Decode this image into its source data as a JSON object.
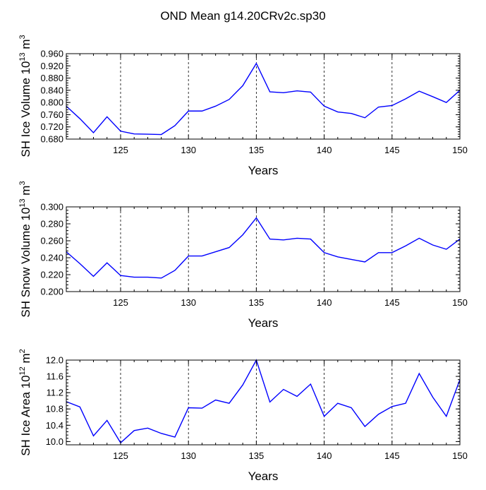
{
  "title": "OND Mean g14.20CRv2c.sp30",
  "line_color": "#0000ff",
  "chart_data": [
    {
      "type": "line",
      "ylabel_main": "SH Ice Volume 10",
      "ylabel_exp": "13",
      "ylabel_unit": " m",
      "ylabel_unit_exp": "3",
      "xlabel": "Years",
      "xlim": [
        121,
        150
      ],
      "ylim": [
        0.68,
        0.96
      ],
      "yticks": [
        0.68,
        0.72,
        0.76,
        0.8,
        0.84,
        0.88,
        0.92,
        0.96
      ],
      "ytick_labels": [
        "0.680",
        "0.720",
        "0.760",
        "0.800",
        "0.840",
        "0.880",
        "0.920",
        "0.960"
      ],
      "yminor_step": 0.008,
      "xticks": [
        125,
        130,
        135,
        140,
        145,
        150
      ],
      "xtick_labels": [
        "125",
        "130",
        "135",
        "140",
        "145",
        "150"
      ],
      "x": [
        121,
        122,
        123,
        124,
        125,
        126,
        127,
        128,
        129,
        130,
        131,
        132,
        133,
        134,
        135,
        136,
        137,
        138,
        139,
        140,
        141,
        142,
        143,
        144,
        145,
        146,
        147,
        148,
        149,
        150
      ],
      "values": [
        0.788,
        0.747,
        0.701,
        0.753,
        0.706,
        0.697,
        0.696,
        0.695,
        0.724,
        0.772,
        0.772,
        0.788,
        0.81,
        0.855,
        0.928,
        0.835,
        0.832,
        0.838,
        0.834,
        0.788,
        0.769,
        0.764,
        0.75,
        0.785,
        0.79,
        0.812,
        0.837,
        0.819,
        0.8,
        0.84
      ]
    },
    {
      "type": "line",
      "ylabel_main": "SH Snow Volume 10",
      "ylabel_exp": "13",
      "ylabel_unit": " m",
      "ylabel_unit_exp": "3",
      "xlabel": "Years",
      "xlim": [
        121,
        150
      ],
      "ylim": [
        0.2,
        0.3
      ],
      "yticks": [
        0.2,
        0.22,
        0.24,
        0.26,
        0.28,
        0.3
      ],
      "ytick_labels": [
        "0.200",
        "0.220",
        "0.240",
        "0.260",
        "0.280",
        "0.300"
      ],
      "yminor_step": 0.004,
      "xticks": [
        125,
        130,
        135,
        140,
        145,
        150
      ],
      "xtick_labels": [
        "125",
        "130",
        "135",
        "140",
        "145",
        "150"
      ],
      "x": [
        121,
        122,
        123,
        124,
        125,
        126,
        127,
        128,
        129,
        130,
        131,
        132,
        133,
        134,
        135,
        136,
        137,
        138,
        139,
        140,
        141,
        142,
        143,
        144,
        145,
        146,
        147,
        148,
        149,
        150
      ],
      "values": [
        0.247,
        0.233,
        0.218,
        0.234,
        0.219,
        0.217,
        0.217,
        0.216,
        0.225,
        0.242,
        0.242,
        0.247,
        0.252,
        0.267,
        0.287,
        0.262,
        0.261,
        0.263,
        0.262,
        0.246,
        0.241,
        0.238,
        0.235,
        0.246,
        0.246,
        0.254,
        0.263,
        0.255,
        0.25,
        0.262
      ]
    },
    {
      "type": "line",
      "ylabel_main": "SH Ice Area 10",
      "ylabel_exp": "12",
      "ylabel_unit": " m",
      "ylabel_unit_exp": "2",
      "xlabel": "Years",
      "xlim": [
        121,
        150
      ],
      "ylim": [
        9.92,
        12.0
      ],
      "yticks": [
        10.0,
        10.4,
        10.8,
        11.2,
        11.6,
        12.0
      ],
      "ytick_labels": [
        "10.0",
        "10.4",
        "10.8",
        "11.2",
        "11.6",
        "12.0"
      ],
      "yminor_step": 0.08,
      "xticks": [
        125,
        130,
        135,
        140,
        145,
        150
      ],
      "xtick_labels": [
        "125",
        "130",
        "135",
        "140",
        "145",
        "150"
      ],
      "x": [
        121,
        122,
        123,
        124,
        125,
        126,
        127,
        128,
        129,
        130,
        131,
        132,
        133,
        134,
        135,
        136,
        137,
        138,
        139,
        140,
        141,
        142,
        143,
        144,
        145,
        146,
        147,
        148,
        149,
        150
      ],
      "values": [
        10.98,
        10.85,
        10.14,
        10.52,
        9.97,
        10.27,
        10.33,
        10.2,
        10.11,
        10.83,
        10.82,
        11.02,
        10.94,
        11.39,
        12.0,
        10.97,
        11.28,
        11.11,
        11.41,
        10.62,
        10.94,
        10.83,
        10.37,
        10.67,
        10.86,
        10.94,
        11.67,
        11.09,
        10.62,
        11.52
      ]
    }
  ]
}
